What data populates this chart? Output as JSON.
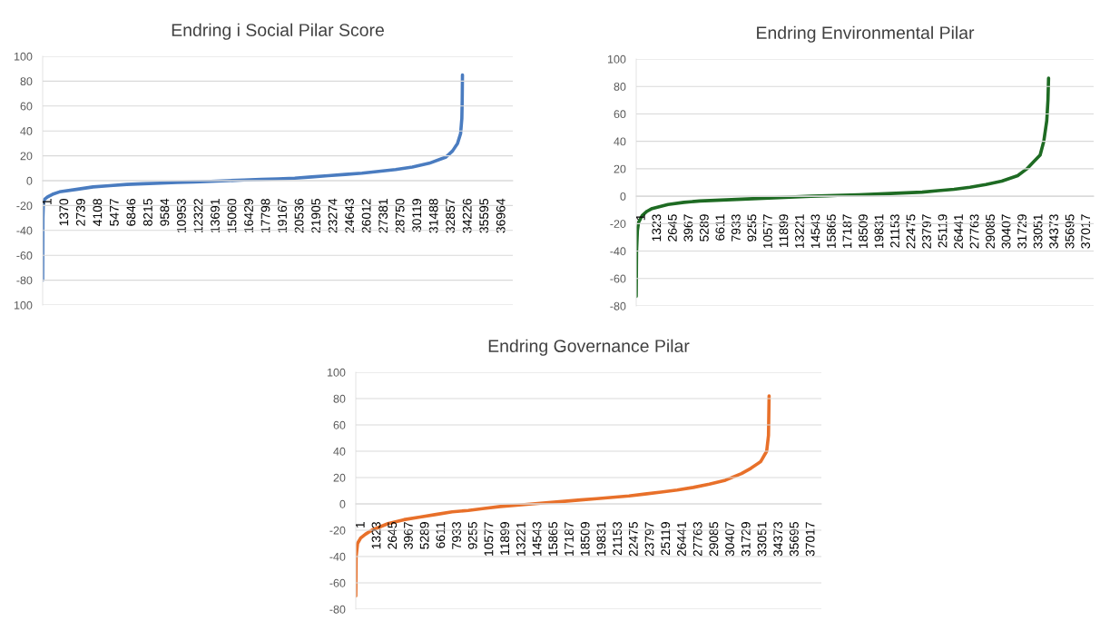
{
  "chart_data": [
    {
      "type": "line",
      "title": "Endring i Social Pilar Score",
      "grid": "y",
      "marker": "none",
      "line_style": "solid",
      "x": [
        1,
        20,
        60,
        150,
        400,
        800,
        1370,
        2739,
        4108,
        5477,
        6846,
        8215,
        9584,
        10953,
        12322,
        13691,
        15060,
        16429,
        17798,
        19167,
        20536,
        21905,
        23274,
        24643,
        26012,
        27381,
        28750,
        30119,
        31488,
        32857,
        33400,
        33800,
        34050,
        34150,
        34180,
        34200
      ],
      "series": [
        {
          "color": "#4a7cc0",
          "values": [
            -80,
            -30,
            -18,
            -15,
            -13,
            -11,
            -9,
            -7,
            -5,
            -4,
            -3,
            -2.5,
            -2,
            -1.5,
            -1,
            -0.5,
            0,
            0.5,
            1,
            1.5,
            2,
            3,
            4,
            5,
            6,
            7.5,
            9,
            11,
            14,
            19,
            24,
            30,
            38,
            50,
            65,
            85
          ]
        }
      ],
      "xlim": [
        1,
        38300
      ],
      "xticks": [
        1,
        1370,
        2739,
        4108,
        5477,
        6846,
        8215,
        9584,
        10953,
        12322,
        13691,
        15060,
        16429,
        17798,
        19167,
        20536,
        21905,
        23274,
        24643,
        26012,
        27381,
        28750,
        30119,
        31488,
        32857,
        34226,
        35595,
        36964
      ],
      "ylim": [
        -100,
        100
      ],
      "yticks": [
        {
          "value": -100,
          "label": "100"
        },
        -80,
        -60,
        -40,
        -20,
        0,
        20,
        40,
        60,
        80,
        100
      ]
    },
    {
      "type": "line",
      "title": "Endring Environmental Pilar",
      "grid": "y",
      "marker": "none",
      "line_style": "solid",
      "x": [
        1,
        30,
        100,
        200,
        500,
        900,
        1323,
        2645,
        3967,
        5289,
        6611,
        7933,
        9255,
        10577,
        11899,
        13221,
        14543,
        15865,
        17187,
        18509,
        19831,
        21153,
        22475,
        23797,
        25119,
        26441,
        27763,
        29085,
        30407,
        31729,
        32500,
        33051,
        33600,
        33900,
        34150,
        34250,
        34300
      ],
      "series": [
        {
          "color": "#1e6b23",
          "values": [
            -73,
            -40,
            -25,
            -19,
            -14,
            -11,
            -9,
            -6,
            -4.5,
            -3.5,
            -3,
            -2.5,
            -2,
            -1.5,
            -1,
            -0.5,
            0,
            0.3,
            0.7,
            1,
            1.5,
            2,
            2.5,
            3,
            4,
            5,
            6.5,
            8.5,
            11,
            15,
            20,
            25,
            30,
            40,
            55,
            70,
            86
          ]
        }
      ],
      "xlim": [
        1,
        38050
      ],
      "xticks": [
        1,
        1323,
        2645,
        3967,
        5289,
        6611,
        7933,
        9255,
        10577,
        11899,
        13221,
        14543,
        15865,
        17187,
        18509,
        19831,
        21153,
        22475,
        23797,
        25119,
        26441,
        27763,
        29085,
        30407,
        31729,
        33051,
        34373,
        35695,
        37017
      ],
      "ylim": [
        -80,
        100
      ],
      "yticks": [
        -80,
        -60,
        -40,
        -20,
        0,
        20,
        40,
        60,
        80,
        100
      ]
    },
    {
      "type": "line",
      "title": "Endring Governance Pilar",
      "grid": "y",
      "marker": "none",
      "line_style": "solid",
      "x": [
        1,
        30,
        150,
        400,
        800,
        1323,
        2645,
        3967,
        5289,
        6611,
        7933,
        9255,
        10577,
        11899,
        13221,
        14543,
        15865,
        17187,
        18509,
        19831,
        21153,
        22475,
        23797,
        25119,
        26441,
        27763,
        29085,
        30407,
        31729,
        32500,
        33300,
        33800,
        33950,
        34000
      ],
      "series": [
        {
          "color": "#e8702a",
          "values": [
            -70,
            -40,
            -30,
            -26,
            -23,
            -20,
            -15,
            -12,
            -10,
            -8,
            -6,
            -5,
            -3.5,
            -2,
            -1,
            0,
            1,
            2,
            3,
            4,
            5,
            6,
            7.5,
            9,
            10.5,
            12.5,
            15,
            18,
            23,
            27,
            32,
            40,
            52,
            82
          ]
        }
      ],
      "xlim": [
        1,
        38300
      ],
      "xticks": [
        1,
        1323,
        2645,
        3967,
        5289,
        6611,
        7933,
        9255,
        10577,
        11899,
        13221,
        14543,
        15865,
        17187,
        18509,
        19831,
        21153,
        22475,
        23797,
        25119,
        26441,
        27763,
        29085,
        30407,
        31729,
        33051,
        34373,
        35695,
        37017
      ],
      "ylim": [
        -80,
        100
      ],
      "yticks": [
        -80,
        -60,
        -40,
        -20,
        0,
        20,
        40,
        60,
        80,
        100
      ]
    }
  ]
}
